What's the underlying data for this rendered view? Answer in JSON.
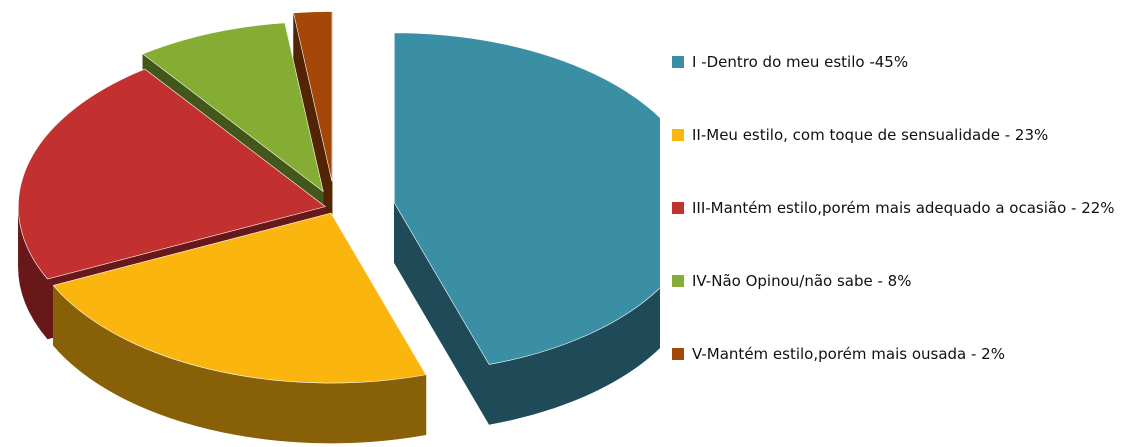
{
  "chart_data": {
    "type": "pie",
    "style": "3d-exploded",
    "legend_position": "right",
    "slices": [
      {
        "label": "I -Dentro do meu estilo -45%",
        "value": 45,
        "color": "#3A8FA5",
        "side_color": "#1F4A58"
      },
      {
        "label": "II-Meu estilo, com toque de sensualidade - 23%",
        "value": 23,
        "color": "#FBB50F",
        "side_color": "#876008"
      },
      {
        "label": "III-Mantém estilo,porém mais adequado a ocasião - 22%",
        "value": 22,
        "color": "#C33030",
        "side_color": "#681818"
      },
      {
        "label": "IV-Não Opinou/não sabe - 8%",
        "value": 8,
        "color": "#86AD33",
        "side_color": "#44571A"
      },
      {
        "label": "V-Mantém estilo,porém mais ousada - 2%",
        "value": 2,
        "color": "#A54708",
        "side_color": "#522404"
      }
    ]
  }
}
